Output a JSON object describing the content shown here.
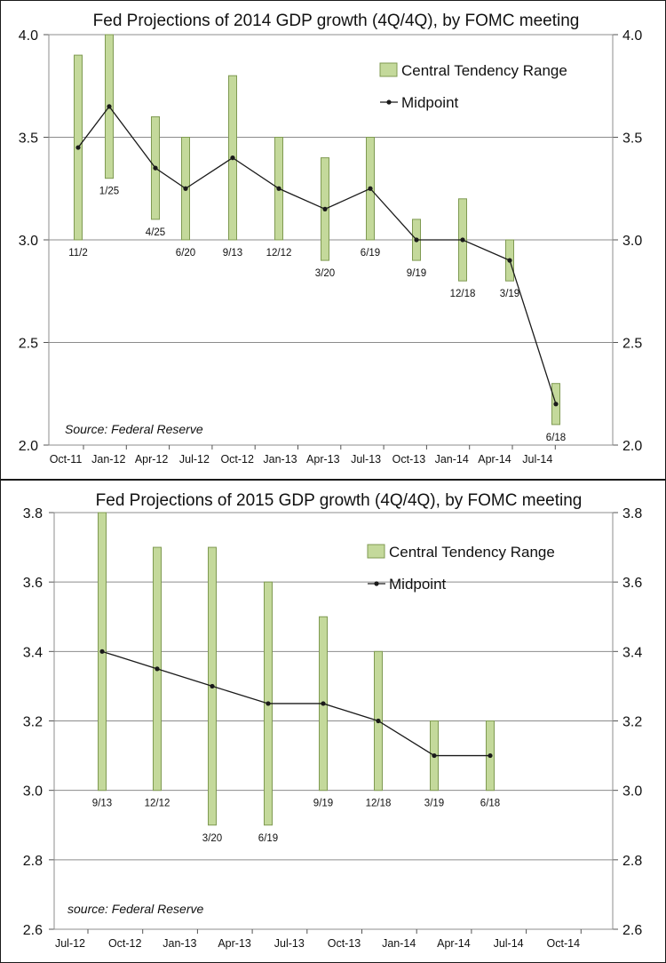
{
  "chart_data": [
    {
      "type": "bar",
      "title": "Fed Projections of 2014 GDP growth (4Q/4Q), by FOMC meeting",
      "source": "Source: Federal Reserve",
      "ylim": [
        2.0,
        4.0
      ],
      "y_ticks": [
        "2.0",
        "2.5",
        "3.0",
        "3.5",
        "4.0"
      ],
      "x_ticks": [
        "Oct-11",
        "Jan-12",
        "Apr-12",
        "Jul-12",
        "Oct-12",
        "Jan-13",
        "Apr-13",
        "Jul-13",
        "Oct-13",
        "Jan-14",
        "Apr-14",
        "Jul-14"
      ],
      "legend": {
        "range_label": "Central Tendency Range",
        "midpoint_label": "Midpoint"
      },
      "colors": {
        "bar_fill": "#c4d99b",
        "bar_stroke": "#7f9a52",
        "line": "#1a1a1a"
      },
      "series": [
        {
          "date": "11/2",
          "low": 3.0,
          "high": 3.9,
          "mid": 3.45
        },
        {
          "date": "1/25",
          "low": 3.3,
          "high": 4.0,
          "mid": 3.65
        },
        {
          "date": "4/25",
          "low": 3.1,
          "high": 3.6,
          "mid": 3.35
        },
        {
          "date": "6/20",
          "low": 3.0,
          "high": 3.5,
          "mid": 3.25
        },
        {
          "date": "9/13",
          "low": 3.0,
          "high": 3.8,
          "mid": 3.4
        },
        {
          "date": "12/12",
          "low": 3.0,
          "high": 3.5,
          "mid": 3.25
        },
        {
          "date": "3/20",
          "low": 2.9,
          "high": 3.4,
          "mid": 3.15
        },
        {
          "date": "6/19",
          "low": 3.0,
          "high": 3.5,
          "mid": 3.25
        },
        {
          "date": "9/19",
          "low": 2.9,
          "high": 3.1,
          "mid": 3.0
        },
        {
          "date": "12/18",
          "low": 2.8,
          "high": 3.2,
          "mid": 3.0
        },
        {
          "date": "3/19",
          "low": 2.8,
          "high": 3.0,
          "mid": 2.9
        },
        {
          "date": "6/18",
          "low": 2.1,
          "high": 2.3,
          "mid": 2.2
        }
      ]
    },
    {
      "type": "bar",
      "title": "Fed Projections of 2015 GDP growth (4Q/4Q), by FOMC meeting",
      "source": "source: Federal Reserve",
      "ylim": [
        2.6,
        3.8
      ],
      "y_ticks": [
        "2.6",
        "2.8",
        "3.0",
        "3.2",
        "3.4",
        "3.6",
        "3.8"
      ],
      "x_ticks": [
        "Jul-12",
        "Oct-12",
        "Jan-13",
        "Apr-13",
        "Jul-13",
        "Oct-13",
        "Jan-14",
        "Apr-14",
        "Jul-14",
        "Oct-14"
      ],
      "legend": {
        "range_label": "Central Tendency Range",
        "midpoint_label": "Midpoint"
      },
      "colors": {
        "bar_fill": "#c4d99b",
        "bar_stroke": "#7f9a52",
        "line": "#1a1a1a"
      },
      "series": [
        {
          "date": "9/13",
          "low": 3.0,
          "high": 3.8,
          "mid": 3.4
        },
        {
          "date": "12/12",
          "low": 3.0,
          "high": 3.7,
          "mid": 3.35
        },
        {
          "date": "3/20",
          "low": 2.9,
          "high": 3.7,
          "mid": 3.3
        },
        {
          "date": "6/19",
          "low": 2.9,
          "high": 3.6,
          "mid": 3.25
        },
        {
          "date": "9/19",
          "low": 3.0,
          "high": 3.5,
          "mid": 3.25
        },
        {
          "date": "12/18",
          "low": 3.0,
          "high": 3.4,
          "mid": 3.2
        },
        {
          "date": "3/19",
          "low": 3.0,
          "high": 3.2,
          "mid": 3.1
        },
        {
          "date": "6/18",
          "low": 3.0,
          "high": 3.2,
          "mid": 3.1
        }
      ]
    }
  ]
}
